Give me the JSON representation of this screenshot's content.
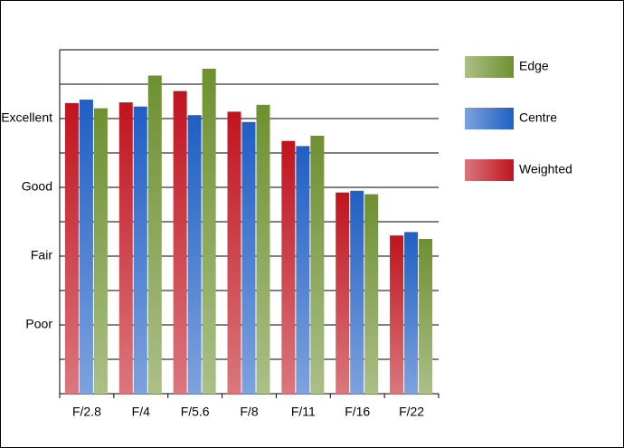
{
  "chart_data": {
    "type": "bar",
    "categories": [
      "F/2.8",
      "F/4",
      "F/5.6",
      "F/8",
      "F/11",
      "F/16",
      "F/22"
    ],
    "series": [
      {
        "name": "Weighted",
        "color": "#c0141e",
        "values": [
          8.45,
          8.47,
          8.8,
          8.2,
          7.35,
          5.85,
          4.6
        ]
      },
      {
        "name": "Centre",
        "color": "#1f5fc4",
        "values": [
          8.55,
          8.35,
          8.1,
          7.9,
          7.2,
          5.9,
          4.7
        ]
      },
      {
        "name": "Edge",
        "color": "#6e9030",
        "values": [
          8.3,
          9.25,
          9.45,
          8.4,
          7.5,
          5.8,
          4.5
        ]
      }
    ],
    "ylim": [
      0,
      10
    ],
    "yticks": [
      {
        "value": 2,
        "label": "Poor"
      },
      {
        "value": 4,
        "label": "Fair"
      },
      {
        "value": 6,
        "label": "Good"
      },
      {
        "value": 8,
        "label": "Excellent"
      }
    ],
    "minor_yticks": [
      0,
      1,
      3,
      5,
      7,
      9,
      10
    ],
    "grid": true,
    "legend": "right"
  }
}
